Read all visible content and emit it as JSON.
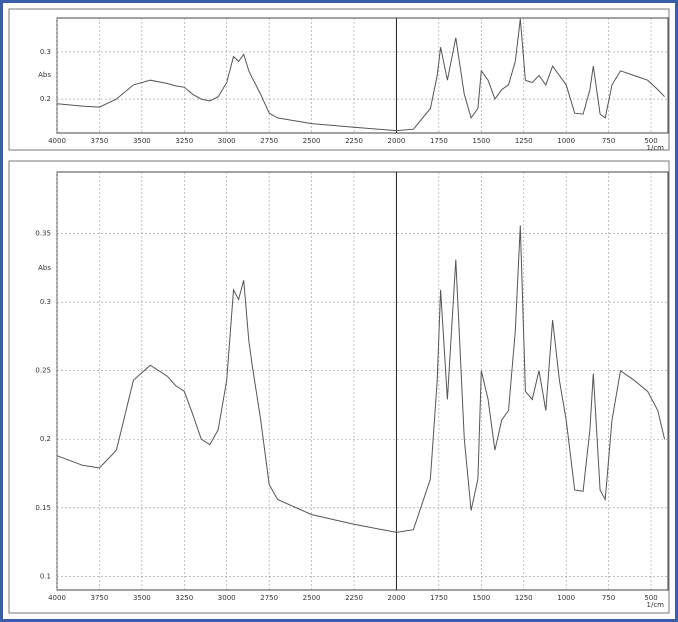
{
  "chart_data": [
    {
      "type": "line",
      "y_label": "Abs",
      "x_label": "1/cm",
      "x": [
        4000,
        3850,
        3750,
        3650,
        3550,
        3450,
        3350,
        3300,
        3250,
        3200,
        3150,
        3100,
        3050,
        3000,
        2960,
        2930,
        2900,
        2870,
        2850,
        2800,
        2750,
        2700,
        2500,
        2250,
        2000,
        1900,
        1800,
        1760,
        1740,
        1700,
        1650,
        1600,
        1560,
        1520,
        1500,
        1460,
        1420,
        1380,
        1340,
        1300,
        1270,
        1240,
        1200,
        1160,
        1120,
        1080,
        1040,
        1000,
        950,
        900,
        860,
        840,
        800,
        770,
        730,
        680,
        600,
        520,
        460,
        420
      ],
      "series": [
        {
          "color": "#555555",
          "values": [
            0.19,
            0.185,
            0.183,
            0.2,
            0.23,
            0.24,
            0.233,
            0.228,
            0.225,
            0.21,
            0.2,
            0.196,
            0.205,
            0.235,
            0.29,
            0.28,
            0.295,
            0.26,
            0.245,
            0.21,
            0.17,
            0.16,
            0.148,
            0.14,
            0.133,
            0.136,
            0.18,
            0.25,
            0.31,
            0.24,
            0.33,
            0.21,
            0.16,
            0.18,
            0.26,
            0.24,
            0.2,
            0.22,
            0.23,
            0.28,
            0.37,
            0.24,
            0.235,
            0.25,
            0.23,
            0.27,
            0.25,
            0.23,
            0.17,
            0.168,
            0.22,
            0.27,
            0.168,
            0.16,
            0.23,
            0.26,
            0.25,
            0.24,
            0.22,
            0.205
          ]
        }
      ],
      "xlim": [
        4000,
        400
      ],
      "ylim": [
        0.128,
        0.372
      ],
      "xticks": [
        4000,
        3750,
        3500,
        3250,
        3000,
        2750,
        2500,
        2250,
        2000,
        1750,
        1500,
        1250,
        1000,
        750,
        500
      ],
      "yticks": [
        0.2,
        0.3
      ],
      "grid": true
    },
    {
      "type": "line",
      "y_label": "Abs",
      "x_label": "1/cm",
      "x": [
        4000,
        3850,
        3750,
        3650,
        3550,
        3450,
        3350,
        3300,
        3250,
        3200,
        3150,
        3100,
        3050,
        3000,
        2960,
        2930,
        2900,
        2870,
        2850,
        2800,
        2750,
        2700,
        2500,
        2250,
        2000,
        1900,
        1800,
        1760,
        1740,
        1700,
        1650,
        1600,
        1560,
        1520,
        1500,
        1460,
        1420,
        1380,
        1340,
        1300,
        1270,
        1240,
        1200,
        1160,
        1120,
        1080,
        1040,
        1000,
        950,
        900,
        860,
        840,
        800,
        770,
        730,
        680,
        600,
        520,
        460,
        420
      ],
      "series": [
        {
          "color": "#555555",
          "values": [
            0.188,
            0.181,
            0.179,
            0.192,
            0.243,
            0.254,
            0.246,
            0.239,
            0.235,
            0.218,
            0.2,
            0.196,
            0.207,
            0.243,
            0.309,
            0.302,
            0.316,
            0.272,
            0.254,
            0.214,
            0.167,
            0.156,
            0.145,
            0.138,
            0.132,
            0.134,
            0.171,
            0.243,
            0.309,
            0.229,
            0.331,
            0.2,
            0.148,
            0.171,
            0.25,
            0.229,
            0.192,
            0.214,
            0.221,
            0.279,
            0.356,
            0.235,
            0.229,
            0.25,
            0.221,
            0.287,
            0.243,
            0.214,
            0.163,
            0.162,
            0.207,
            0.248,
            0.163,
            0.156,
            0.214,
            0.25,
            0.243,
            0.235,
            0.221,
            0.2
          ]
        }
      ],
      "xlim": [
        4000,
        400
      ],
      "ylim": [
        0.09,
        0.395
      ],
      "xticks": [
        4000,
        3750,
        3500,
        3250,
        3000,
        2750,
        2500,
        2250,
        2000,
        1750,
        1500,
        1250,
        1000,
        750,
        500
      ],
      "yticks": [
        0.1,
        0.15,
        0.2,
        0.25,
        0.3,
        0.35
      ],
      "grid": true
    }
  ]
}
